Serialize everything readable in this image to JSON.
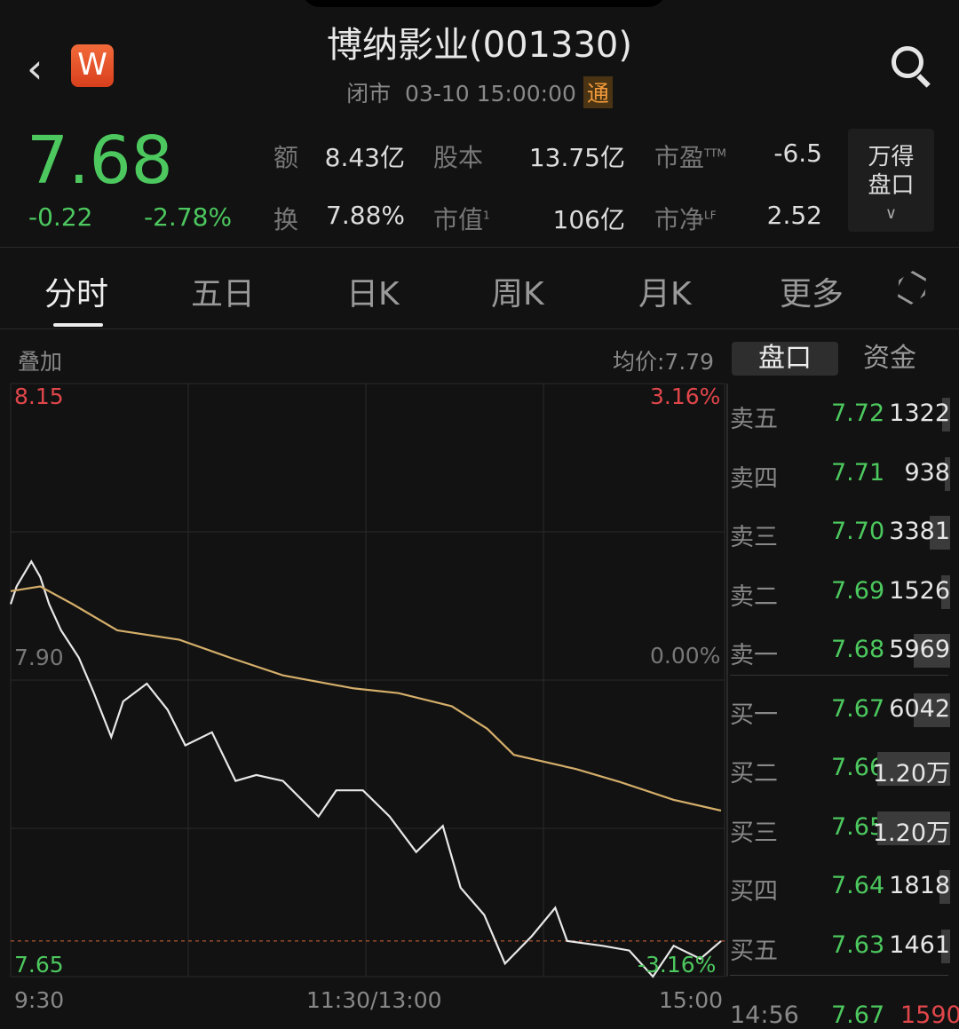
{
  "header": {
    "title": "博纳影业(001330)",
    "status": "闭市",
    "datetime": "03-10 15:00:00",
    "badge": "通",
    "logo": "W",
    "back_icon": "chevron-left-icon",
    "search_icon": "search-icon"
  },
  "quote": {
    "price": "7.68",
    "change": "-0.22",
    "change_pct": "-2.78%",
    "color_down": "#4cc85e",
    "stats": [
      {
        "label": "额",
        "value": "8.43亿"
      },
      {
        "label": "股本",
        "value": "13.75亿"
      },
      {
        "label": "市盈",
        "sup": "TTM",
        "value": "-6.5"
      },
      {
        "label": "换",
        "value": "7.88%"
      },
      {
        "label": "市值",
        "sup": "1",
        "value": "106亿"
      },
      {
        "label": "市净",
        "sup": "LF",
        "value": "2.52"
      }
    ],
    "wind_button": "万得\n盘口"
  },
  "tabs": [
    {
      "label": "分时"
    },
    {
      "label": "五日"
    },
    {
      "label": "日K"
    },
    {
      "label": "周K"
    },
    {
      "label": "月K"
    },
    {
      "label": "更多"
    }
  ],
  "chart_toolbar": {
    "overlay": "叠加",
    "avg_price": "均价:7.79"
  },
  "side_tabs": [
    "盘口",
    "资金"
  ],
  "order_book": [
    {
      "name": "卖五",
      "price": "7.72",
      "vol": "1322",
      "qty": 1322
    },
    {
      "name": "卖四",
      "price": "7.71",
      "vol": "938",
      "qty": 938
    },
    {
      "name": "卖三",
      "price": "7.70",
      "vol": "3381",
      "qty": 3381
    },
    {
      "name": "卖二",
      "price": "7.69",
      "vol": "1526",
      "qty": 1526
    },
    {
      "name": "卖一",
      "price": "7.68",
      "vol": "5969",
      "qty": 5969
    },
    {
      "name": "买一",
      "price": "7.67",
      "vol": "6042",
      "qty": 6042
    },
    {
      "name": "买二",
      "price": "7.66",
      "vol": "1.20万",
      "qty": 12000
    },
    {
      "name": "买三",
      "price": "7.65",
      "vol": "1.20万",
      "qty": 12000
    },
    {
      "name": "买四",
      "price": "7.64",
      "vol": "1818",
      "qty": 1818
    },
    {
      "name": "买五",
      "price": "7.63",
      "vol": "1461",
      "qty": 1461
    }
  ],
  "last_trade": {
    "time": "14:56",
    "price": "7.67",
    "vol": "1590"
  },
  "chart_data": {
    "type": "line",
    "y_labels": {
      "top": "8.15",
      "mid": "7.90",
      "bottom": "7.65",
      "top_pct": "3.16%",
      "mid_pct": "0.00%",
      "bottom_pct": "-3.16%"
    },
    "ylim": [
      7.65,
      8.15
    ],
    "prev_close": 7.9,
    "last_price": 7.68,
    "x_labels": [
      "9:30",
      "11:30/13:00",
      "15:00"
    ],
    "series": [
      {
        "key": "price",
        "color": "#e8e8e8",
        "points": [
          [
            "9:30",
            7.964
          ],
          [
            "9:32",
            7.979
          ],
          [
            "9:37",
            8.0
          ],
          [
            "9:40",
            7.987
          ],
          [
            "9:43",
            7.964
          ],
          [
            "9:47",
            7.942
          ],
          [
            "9:53",
            7.919
          ],
          [
            "9:58",
            7.89
          ],
          [
            "10:04",
            7.852
          ],
          [
            "10:08",
            7.882
          ],
          [
            "10:16",
            7.897
          ],
          [
            "10:23",
            7.875
          ],
          [
            "10:29",
            7.845
          ],
          [
            "10:38",
            7.856
          ],
          [
            "10:46",
            7.815
          ],
          [
            "10:53",
            7.82
          ],
          [
            "11:02",
            7.815
          ],
          [
            "11:14",
            7.785
          ],
          [
            "11:20",
            7.807
          ],
          [
            "11:29",
            7.807
          ],
          [
            "13:08",
            7.785
          ],
          [
            "13:17",
            7.755
          ],
          [
            "13:26",
            7.777
          ],
          [
            "13:32",
            7.725
          ],
          [
            "13:40",
            7.702
          ],
          [
            "13:47",
            7.661
          ],
          [
            "13:56",
            7.684
          ],
          [
            "14:04",
            7.708
          ],
          [
            "14:08",
            7.68
          ],
          [
            "14:20",
            7.676
          ],
          [
            "14:29",
            7.672
          ],
          [
            "14:37",
            7.65
          ],
          [
            "14:44",
            7.676
          ],
          [
            "14:53",
            7.665
          ],
          [
            "15:00",
            7.68
          ]
        ]
      },
      {
        "key": "avg",
        "color": "#d4ae6a",
        "points": [
          [
            "9:30",
            7.975
          ],
          [
            "9:40",
            7.979
          ],
          [
            "9:51",
            7.964
          ],
          [
            "10:06",
            7.942
          ],
          [
            "10:27",
            7.934
          ],
          [
            "10:44",
            7.919
          ],
          [
            "11:02",
            7.904
          ],
          [
            "11:26",
            7.893
          ],
          [
            "13:11",
            7.889
          ],
          [
            "13:29",
            7.878
          ],
          [
            "13:41",
            7.859
          ],
          [
            "13:50",
            7.837
          ],
          [
            "14:11",
            7.825
          ],
          [
            "14:26",
            7.814
          ],
          [
            "14:44",
            7.799
          ],
          [
            "15:00",
            7.79
          ]
        ]
      }
    ]
  }
}
